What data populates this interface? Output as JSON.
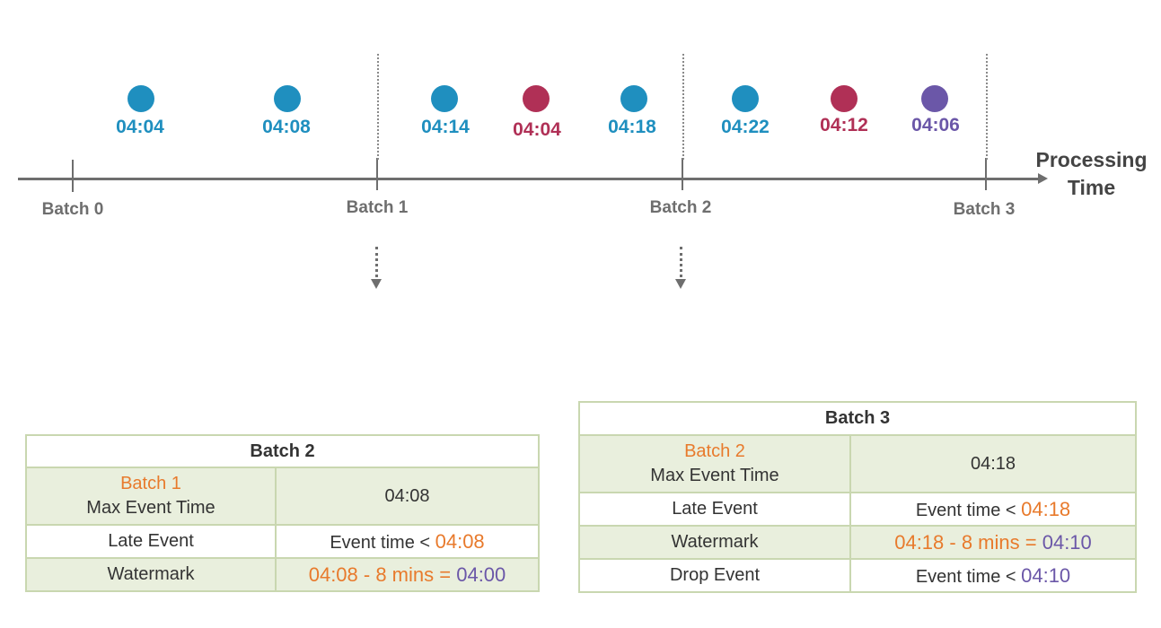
{
  "timeline": {
    "axis_label_line1": "Processing",
    "axis_label_line2": "Time",
    "batches": [
      "Batch 0",
      "Batch 1",
      "Batch 2",
      "Batch 3"
    ],
    "events": [
      {
        "time": "04:04",
        "color": "#1f8fbf"
      },
      {
        "time": "04:08",
        "color": "#1f8fbf"
      },
      {
        "time": "04:14",
        "color": "#1f8fbf"
      },
      {
        "time": "04:04",
        "color": "#b03056"
      },
      {
        "time": "04:18",
        "color": "#1f8fbf"
      },
      {
        "time": "04:22",
        "color": "#1f8fbf"
      },
      {
        "time": "04:12",
        "color": "#b03056"
      },
      {
        "time": "04:06",
        "color": "#6b57a8"
      }
    ]
  },
  "table_batch2": {
    "title": "Batch 2",
    "row1_label_accent": "Batch 1",
    "row1_label": "Max Event Time",
    "row1_value": "04:08",
    "row2_label": "Late Event",
    "row2_value_prefix": "Event time <",
    "row2_value": "04:08",
    "row3_label": "Watermark",
    "row3_value_formula": "04:08 - 8 mins =",
    "row3_value_result": "04:00"
  },
  "table_batch3": {
    "title": "Batch 3",
    "row1_label_accent": "Batch 2",
    "row1_label": "Max Event Time",
    "row1_value": "04:18",
    "row2_label": "Late Event",
    "row2_value_prefix": "Event time <",
    "row2_value": "04:18",
    "row3_label": "Watermark",
    "row3_value_formula": "04:18 - 8 mins =",
    "row3_value_result": "04:10",
    "row4_label": "Drop Event",
    "row4_value_prefix": "Event time <",
    "row4_value": "04:10"
  },
  "colors": {
    "on_time": "#1f8fbf",
    "late": "#b03056",
    "dropped": "#6b57a8",
    "accent_orange": "#e87a2c"
  }
}
